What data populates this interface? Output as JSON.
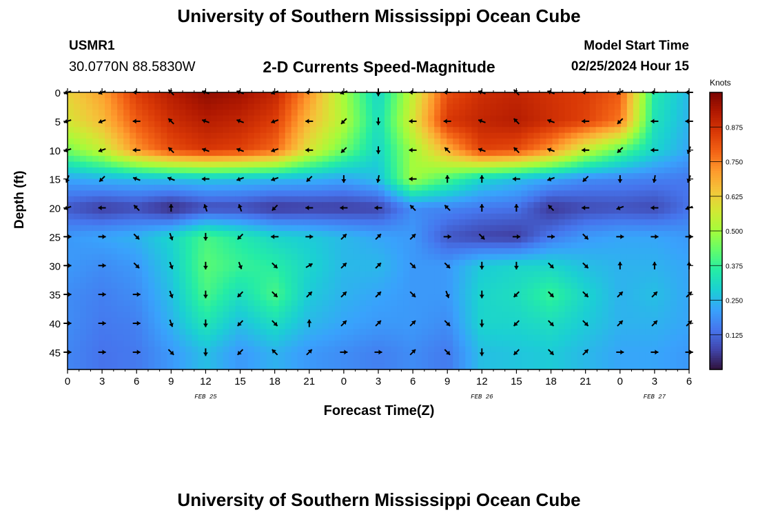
{
  "header": {
    "title": "University of Southern Mississippi Ocean Cube",
    "station": "USMR1",
    "coords": "30.0770N  88.5830W",
    "subtitle": "2-D Currents Speed-Magnitude",
    "model_start_label": "Model Start Time",
    "model_start_value": "02/25/2024 Hour 15"
  },
  "footer": {
    "title": "University of Southern Mississippi Ocean Cube"
  },
  "chart_data": {
    "type": "heatmap",
    "xlabel": "Forecast Time(Z)",
    "ylabel": "Depth (ft)",
    "x_tick_labels": [
      "0",
      "3",
      "6",
      "9",
      "12",
      "15",
      "18",
      "21",
      "0",
      "3",
      "6",
      "9",
      "12",
      "15",
      "18",
      "21",
      "0",
      "3",
      "6"
    ],
    "y_ticks": [
      0,
      5,
      10,
      15,
      20,
      25,
      30,
      35,
      40,
      45
    ],
    "ylim": [
      0,
      48
    ],
    "date_labels": [
      {
        "label": "FEB 25",
        "x_hour": 12
      },
      {
        "label": "FEB 26",
        "x_hour": 36
      },
      {
        "label": "FEB 27",
        "x_hour": 51
      }
    ],
    "colorbar": {
      "label": "Knots",
      "ticks": [
        "0.125",
        "0.250",
        "0.375",
        "0.500",
        "0.625",
        "0.750",
        "0.875"
      ],
      "range": [
        0,
        1.0
      ],
      "colors": [
        "#30123b",
        "#4145ab",
        "#4675ed",
        "#39a2fc",
        "#1bcfd4",
        "#24eca6",
        "#61fc6c",
        "#a4fc3b",
        "#d1e834",
        "#f3c63a",
        "#fe9b2d",
        "#f36315",
        "#d93806",
        "#b11901",
        "#7a0402"
      ]
    },
    "speed_grid": {
      "depths": [
        0,
        5,
        10,
        15,
        20,
        25,
        30,
        35,
        40,
        45
      ],
      "hours": [
        0,
        3,
        6,
        9,
        12,
        15,
        18,
        21,
        24,
        27,
        30,
        33,
        36,
        39,
        42,
        45,
        48,
        51,
        54
      ],
      "values": [
        [
          0.62,
          0.7,
          0.85,
          0.92,
          0.97,
          0.95,
          0.9,
          0.72,
          0.5,
          0.3,
          0.55,
          0.82,
          0.88,
          0.9,
          0.87,
          0.85,
          0.8,
          0.35,
          0.25
        ],
        [
          0.58,
          0.66,
          0.8,
          0.88,
          0.92,
          0.9,
          0.85,
          0.66,
          0.52,
          0.32,
          0.58,
          0.86,
          0.9,
          0.92,
          0.88,
          0.84,
          0.76,
          0.33,
          0.24
        ],
        [
          0.45,
          0.55,
          0.72,
          0.82,
          0.86,
          0.84,
          0.78,
          0.58,
          0.44,
          0.3,
          0.5,
          0.68,
          0.84,
          0.82,
          0.72,
          0.55,
          0.42,
          0.3,
          0.22
        ],
        [
          0.22,
          0.24,
          0.25,
          0.26,
          0.27,
          0.26,
          0.25,
          0.24,
          0.22,
          0.26,
          0.5,
          0.4,
          0.3,
          0.26,
          0.22,
          0.18,
          0.17,
          0.16,
          0.15
        ],
        [
          0.1,
          0.06,
          0.08,
          0.03,
          0.08,
          0.08,
          0.05,
          0.06,
          0.06,
          0.07,
          0.18,
          0.17,
          0.15,
          0.14,
          0.05,
          0.08,
          0.09,
          0.08,
          0.14
        ],
        [
          0.2,
          0.22,
          0.24,
          0.3,
          0.4,
          0.35,
          0.3,
          0.28,
          0.25,
          0.22,
          0.2,
          0.1,
          0.07,
          0.06,
          0.15,
          0.2,
          0.22,
          0.22,
          0.2
        ],
        [
          0.2,
          0.18,
          0.2,
          0.28,
          0.42,
          0.38,
          0.36,
          0.3,
          0.25,
          0.25,
          0.2,
          0.2,
          0.28,
          0.3,
          0.3,
          0.26,
          0.24,
          0.24,
          0.22
        ],
        [
          0.18,
          0.16,
          0.18,
          0.26,
          0.4,
          0.32,
          0.4,
          0.28,
          0.24,
          0.22,
          0.2,
          0.2,
          0.3,
          0.32,
          0.38,
          0.3,
          0.24,
          0.26,
          0.22
        ],
        [
          0.18,
          0.15,
          0.16,
          0.24,
          0.34,
          0.26,
          0.32,
          0.25,
          0.22,
          0.2,
          0.2,
          0.18,
          0.3,
          0.3,
          0.32,
          0.28,
          0.24,
          0.24,
          0.22
        ],
        [
          0.17,
          0.14,
          0.15,
          0.2,
          0.26,
          0.2,
          0.24,
          0.2,
          0.18,
          0.16,
          0.18,
          0.15,
          0.26,
          0.27,
          0.28,
          0.25,
          0.22,
          0.22,
          0.2
        ]
      ]
    },
    "direction_grid": {
      "hours": [
        0,
        3,
        6,
        9,
        12,
        15,
        18,
        21,
        24,
        27,
        30,
        33,
        36,
        39,
        42,
        45,
        48,
        51,
        54
      ],
      "depths": [
        0,
        5,
        10,
        15,
        20,
        25,
        30,
        35,
        40,
        45
      ],
      "angles_deg": [
        [
          250,
          250,
          270,
          315,
          290,
          290,
          250,
          270,
          250,
          180,
          270,
          270,
          290,
          315,
          290,
          270,
          240,
          270,
          270
        ],
        [
          250,
          250,
          270,
          315,
          290,
          290,
          250,
          270,
          225,
          180,
          270,
          270,
          290,
          315,
          290,
          270,
          225,
          270,
          270
        ],
        [
          250,
          250,
          270,
          315,
          290,
          290,
          250,
          270,
          225,
          180,
          270,
          315,
          290,
          315,
          290,
          270,
          225,
          270,
          200
        ],
        [
          200,
          225,
          290,
          290,
          270,
          250,
          250,
          225,
          180,
          190,
          270,
          0,
          0,
          270,
          250,
          225,
          180,
          190,
          200
        ],
        [
          250,
          270,
          315,
          0,
          340,
          340,
          225,
          270,
          270,
          270,
          315,
          315,
          0,
          0,
          315,
          270,
          250,
          270,
          250
        ],
        [
          90,
          90,
          135,
          160,
          180,
          225,
          270,
          90,
          45,
          45,
          45,
          90,
          135,
          90,
          90,
          135,
          90,
          90,
          90
        ],
        [
          90,
          90,
          135,
          160,
          180,
          160,
          135,
          60,
          45,
          45,
          135,
          135,
          180,
          180,
          135,
          135,
          0,
          0,
          0
        ],
        [
          90,
          90,
          90,
          160,
          180,
          225,
          135,
          45,
          45,
          45,
          135,
          160,
          180,
          225,
          135,
          135,
          45,
          45,
          45
        ],
        [
          90,
          90,
          90,
          160,
          180,
          225,
          135,
          0,
          45,
          45,
          45,
          135,
          180,
          225,
          135,
          135,
          45,
          45,
          45
        ],
        [
          90,
          90,
          90,
          135,
          180,
          225,
          315,
          45,
          90,
          90,
          45,
          135,
          180,
          225,
          135,
          45,
          90,
          90,
          90
        ]
      ]
    }
  }
}
